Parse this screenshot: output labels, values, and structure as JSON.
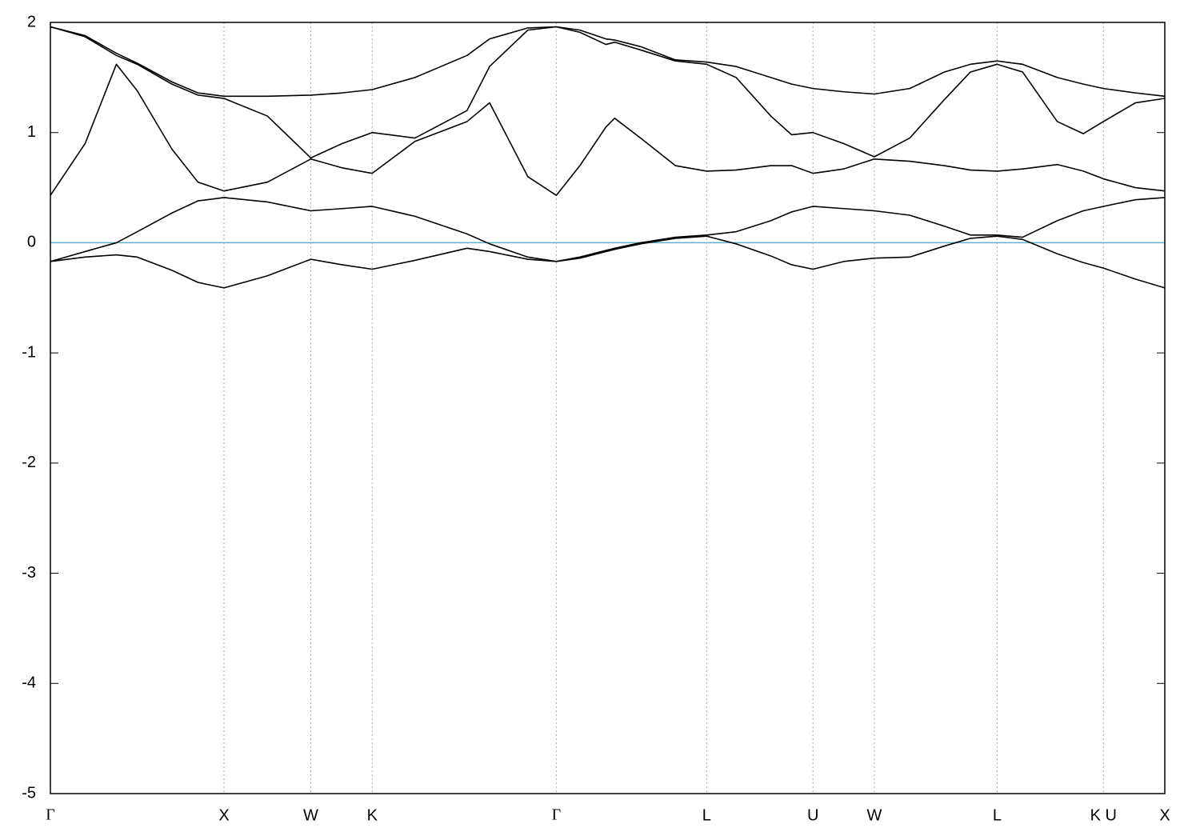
{
  "chart_data": {
    "type": "line",
    "x": [
      0,
      0.2,
      0.38,
      0.5,
      0.7,
      0.85,
      1,
      1.25,
      1.5,
      1.68,
      1.8536,
      2.1,
      2.4,
      2.53,
      2.75,
      2.9142,
      3.05,
      3.2,
      3.25,
      3.4,
      3.6,
      3.7802,
      3.95,
      4.15,
      4.27,
      4.3926,
      4.57,
      4.7462,
      4.95,
      5.15,
      5.3,
      5.4533,
      5.6,
      5.8,
      5.95,
      6.0657,
      6.25,
      6.4193
    ],
    "series": [
      {
        "color": "#000000",
        "values": [
          -0.17,
          -0.13,
          -0.11,
          -0.13,
          -0.25,
          -0.36,
          -0.41,
          -0.3,
          -0.15,
          -0.2,
          -0.24,
          -0.16,
          -0.05,
          -0.08,
          -0.15,
          -0.17,
          -0.14,
          -0.08,
          -0.06,
          -0.01,
          0.04,
          0.06,
          -0.01,
          -0.12,
          -0.2,
          -0.24,
          -0.17,
          -0.14,
          -0.13,
          -0.03,
          0.04,
          0.06,
          0.03,
          -0.1,
          -0.18,
          -0.23,
          -0.33,
          -0.41
        ]
      },
      {
        "color": "#000000",
        "values": [
          -0.17,
          -0.08,
          0,
          0.1,
          0.27,
          0.38,
          0.41,
          0.37,
          0.29,
          0.31,
          0.33,
          0.24,
          0.08,
          -0.01,
          -0.13,
          -0.17,
          -0.13,
          -0.07,
          -0.05,
          0,
          0.05,
          0.07,
          0.1,
          0.2,
          0.28,
          0.33,
          0.31,
          0.29,
          0.25,
          0.15,
          0.07,
          0.07,
          0.05,
          0.2,
          0.29,
          0.33,
          0.39,
          0.41
        ]
      },
      {
        "color": "#000000",
        "values": [
          0.43,
          0.9,
          1.62,
          1.38,
          0.85,
          0.55,
          0.47,
          0.55,
          0.76,
          0.68,
          0.63,
          0.92,
          1.1,
          1.27,
          0.6,
          0.43,
          0.7,
          1.05,
          1.13,
          0.95,
          0.7,
          0.65,
          0.66,
          0.7,
          0.7,
          0.63,
          0.67,
          0.76,
          0.74,
          0.7,
          0.66,
          0.65,
          0.67,
          0.71,
          0.65,
          0.58,
          0.5,
          0.47
        ]
      },
      {
        "color": "#000000",
        "values": [
          1.96,
          1.87,
          1.7,
          1.62,
          1.44,
          1.34,
          1.31,
          1.15,
          0.77,
          0.9,
          1.0,
          0.95,
          1.2,
          1.6,
          1.93,
          1.96,
          1.91,
          1.8,
          1.82,
          1.75,
          1.65,
          1.62,
          1.5,
          1.15,
          0.98,
          1.0,
          0.9,
          0.78,
          0.95,
          1.3,
          1.55,
          1.62,
          1.55,
          1.1,
          0.99,
          1.1,
          1.27,
          1.31
        ]
      },
      {
        "color": "#000000",
        "values": [
          1.96,
          1.88,
          1.72,
          1.63,
          1.46,
          1.36,
          1.33,
          1.33,
          1.34,
          1.36,
          1.39,
          1.5,
          1.7,
          1.85,
          1.95,
          1.96,
          1.93,
          1.85,
          1.84,
          1.78,
          1.66,
          1.64,
          1.6,
          1.5,
          1.44,
          1.4,
          1.37,
          1.35,
          1.4,
          1.55,
          1.62,
          1.65,
          1.62,
          1.5,
          1.44,
          1.4,
          1.36,
          1.33
        ]
      }
    ],
    "reference_line": {
      "value": 0,
      "color": "#5ab4c8"
    },
    "xlim": [
      0,
      6.4193
    ],
    "xticks": [
      {
        "value": 0,
        "label": "Γ"
      },
      {
        "value": 1,
        "label": "X"
      },
      {
        "value": 1.5,
        "label": "W"
      },
      {
        "value": 1.8536,
        "label": "K"
      },
      {
        "value": 2.9142,
        "label": "Γ"
      },
      {
        "value": 3.7802,
        "label": "L"
      },
      {
        "value": 4.3926,
        "label": "U"
      },
      {
        "value": 4.7462,
        "label": "W"
      },
      {
        "value": 5.4533,
        "label": "L"
      },
      {
        "value": 6.0657,
        "label": "K U"
      },
      {
        "value": 6.4193,
        "label": "X"
      }
    ],
    "ylim": [
      -5,
      2
    ],
    "yticks": [
      -5,
      -4,
      -3,
      -2,
      -1,
      0,
      1,
      2
    ],
    "grid": true
  }
}
